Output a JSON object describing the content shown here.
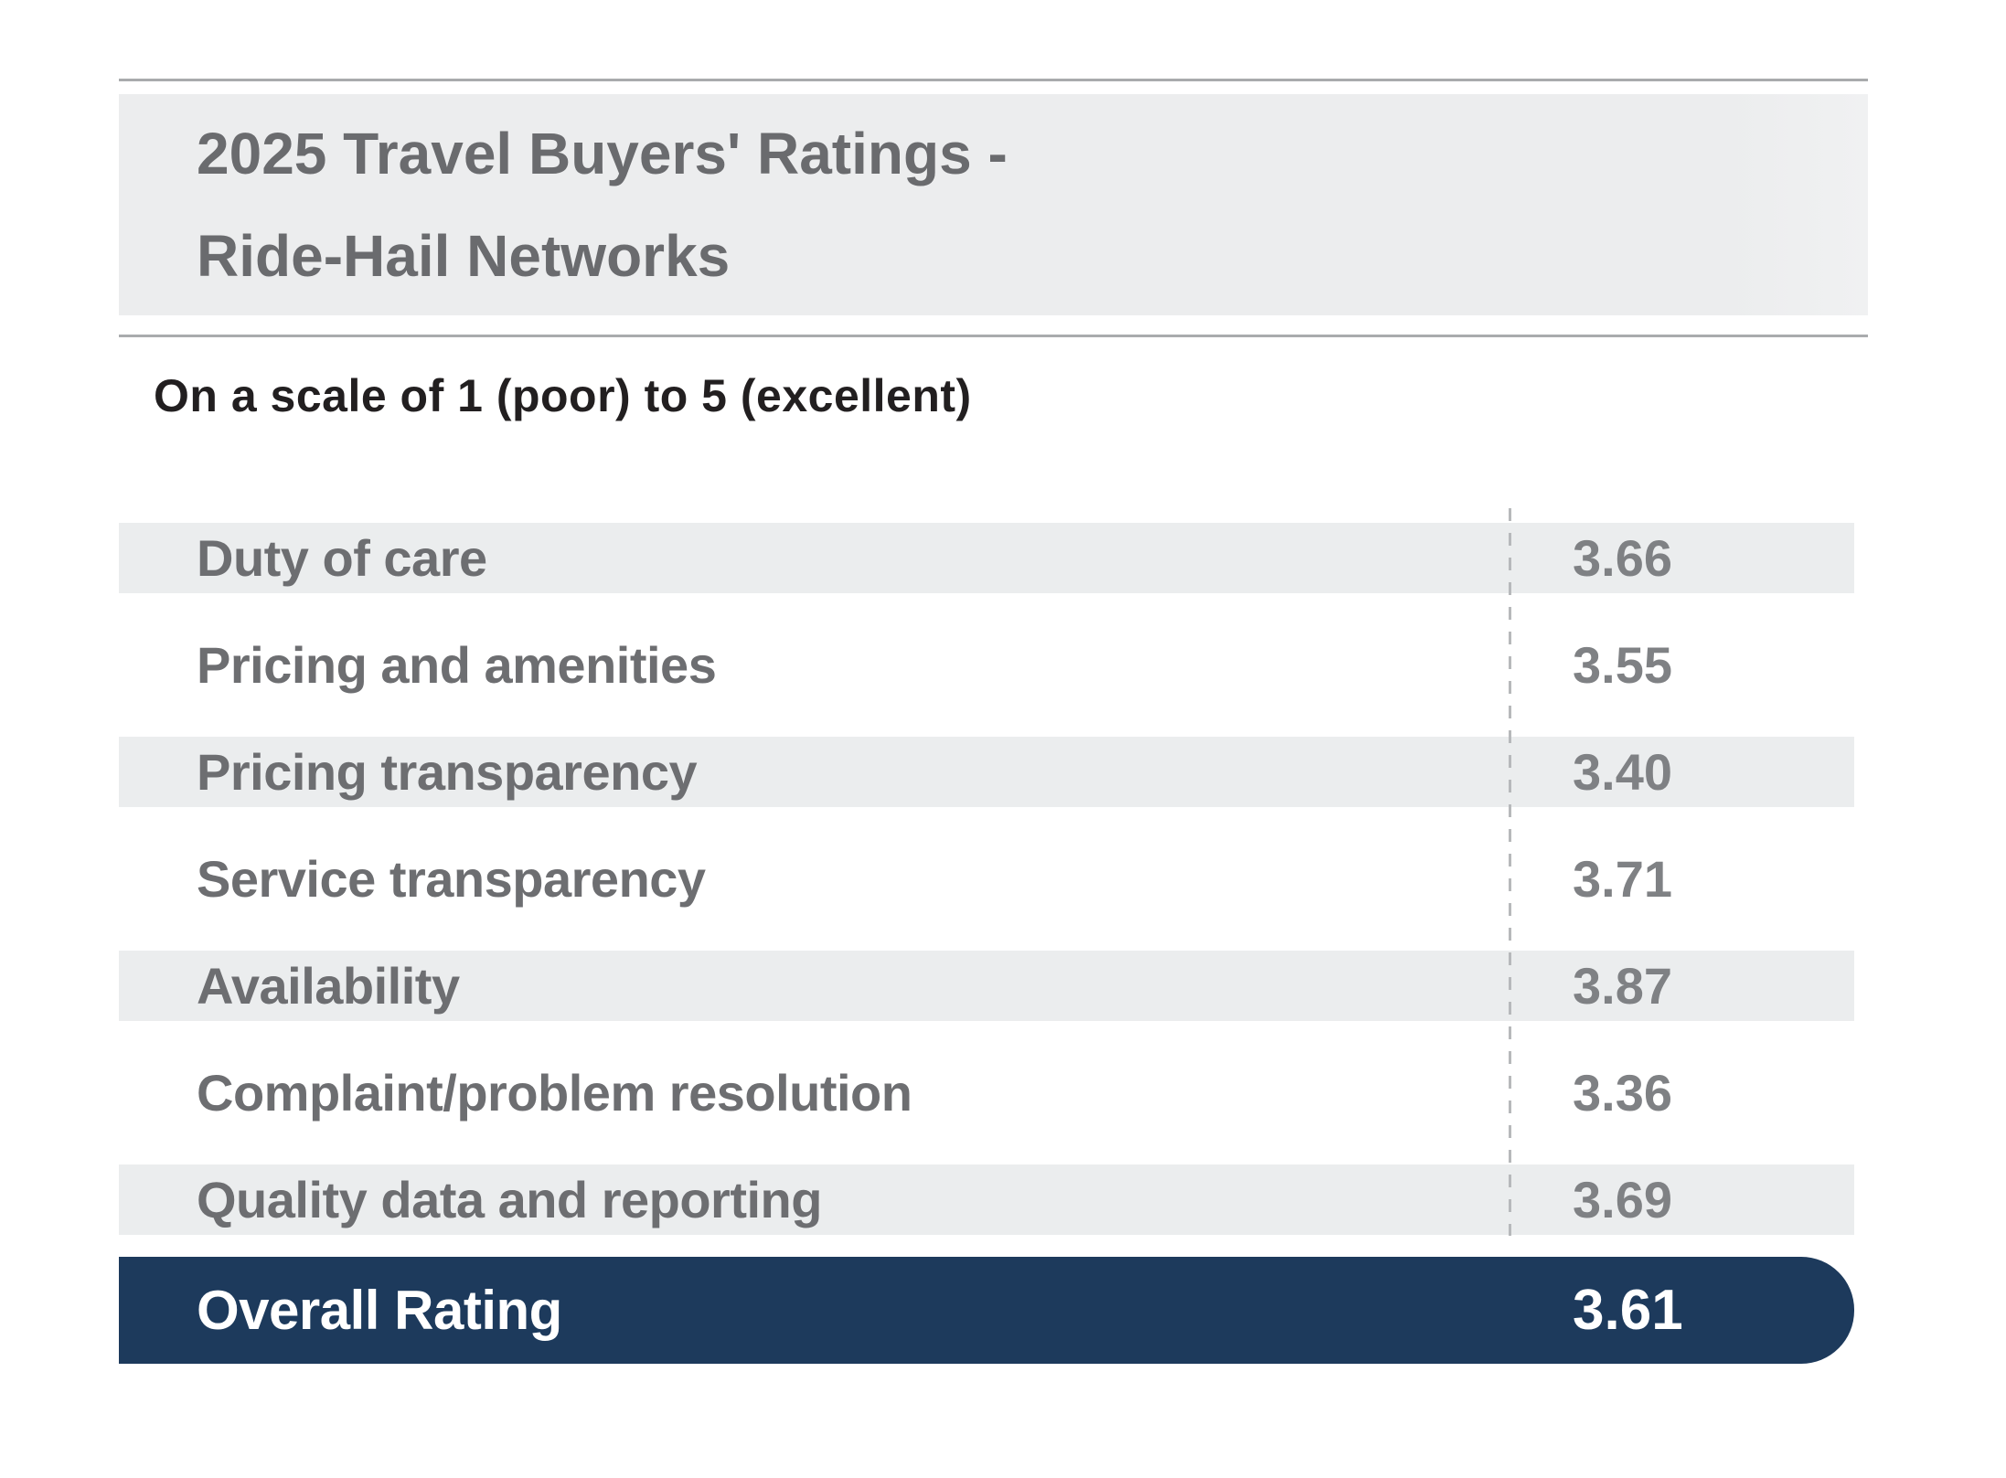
{
  "header": {
    "title_line1": "2025 Travel Buyers' Ratings -",
    "title_line2": "Ride-Hail Networks"
  },
  "subtitle": "On a scale of 1 (poor) to 5 (excellent)",
  "ratings": {
    "rows": [
      {
        "label": "Duty of care",
        "value": "3.66"
      },
      {
        "label": "Pricing and amenities",
        "value": "3.55"
      },
      {
        "label": "Pricing transparency",
        "value": "3.40"
      },
      {
        "label": "Service transparency",
        "value": "3.71"
      },
      {
        "label": "Availability",
        "value": "3.87"
      },
      {
        "label": "Complaint/problem resolution",
        "value": "3.36"
      },
      {
        "label": "Quality data and reporting",
        "value": "3.69"
      }
    ],
    "overall": {
      "label": "Overall Rating",
      "value": "3.61"
    }
  },
  "chart_data": {
    "type": "table",
    "title": "2025 Travel Buyers' Ratings - Ride-Hail Networks",
    "subtitle": "On a scale of 1 (poor) to 5 (excellent)",
    "categories": [
      "Duty of care",
      "Pricing and amenities",
      "Pricing transparency",
      "Service transparency",
      "Availability",
      "Complaint/problem resolution",
      "Quality data and reporting"
    ],
    "values": [
      3.66,
      3.55,
      3.4,
      3.71,
      3.87,
      3.36,
      3.69
    ],
    "overall_label": "Overall Rating",
    "overall_value": 3.61,
    "value_scale": [
      1,
      5
    ],
    "layout": {
      "grid": false,
      "legend": "none",
      "row_striping": true
    }
  },
  "colors": {
    "navy": "#1d3a5c",
    "row_shade": "#ebedee",
    "header_bg": "#ecedee",
    "rule": "#a9abad",
    "dash": "#b7b9bb",
    "title_gray": "#6a6b6e",
    "label_gray": "#6d6e71",
    "value_gray": "#7f8184",
    "subtitle_color": "#221f20"
  }
}
